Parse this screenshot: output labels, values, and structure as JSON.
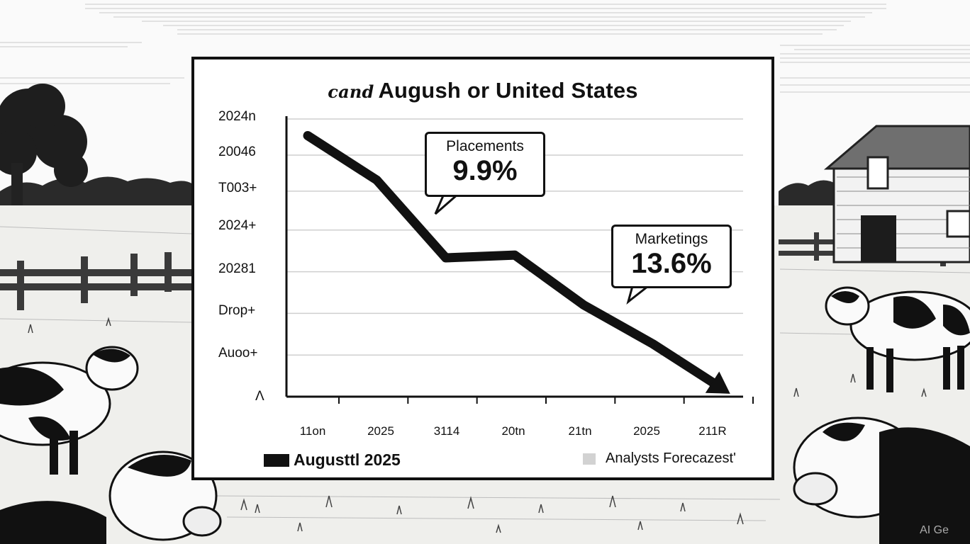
{
  "chart_data": {
    "type": "line",
    "title_prefix": "cand",
    "title": "Augush or United States",
    "y_tick_labels": [
      "2024n",
      "20046",
      "T003+",
      "2024+",
      "20281",
      "Drop+",
      "Auoo+",
      "Λ"
    ],
    "x_tick_labels": [
      "11on",
      "2025",
      "3114",
      "20tn",
      "21tn",
      "2025",
      "211R"
    ],
    "series": [
      {
        "name": "Augusttl 2025",
        "x": [
          0,
          1,
          2,
          3,
          4,
          5,
          6
        ],
        "y": [
          94,
          78,
          50,
          51,
          33,
          19,
          3
        ]
      }
    ],
    "ylim": [
      0,
      100
    ],
    "grid": true,
    "annotations": [
      {
        "label": "Placements",
        "value": "9.9%"
      },
      {
        "label": "Marketings",
        "value": "13.6%"
      }
    ],
    "legend": [
      {
        "label": "Augusttl 2025",
        "color": "#111111"
      },
      {
        "label": "Analysts Forecazest'",
        "color": "#d2d2d2"
      }
    ]
  },
  "watermark": "AI Ge"
}
